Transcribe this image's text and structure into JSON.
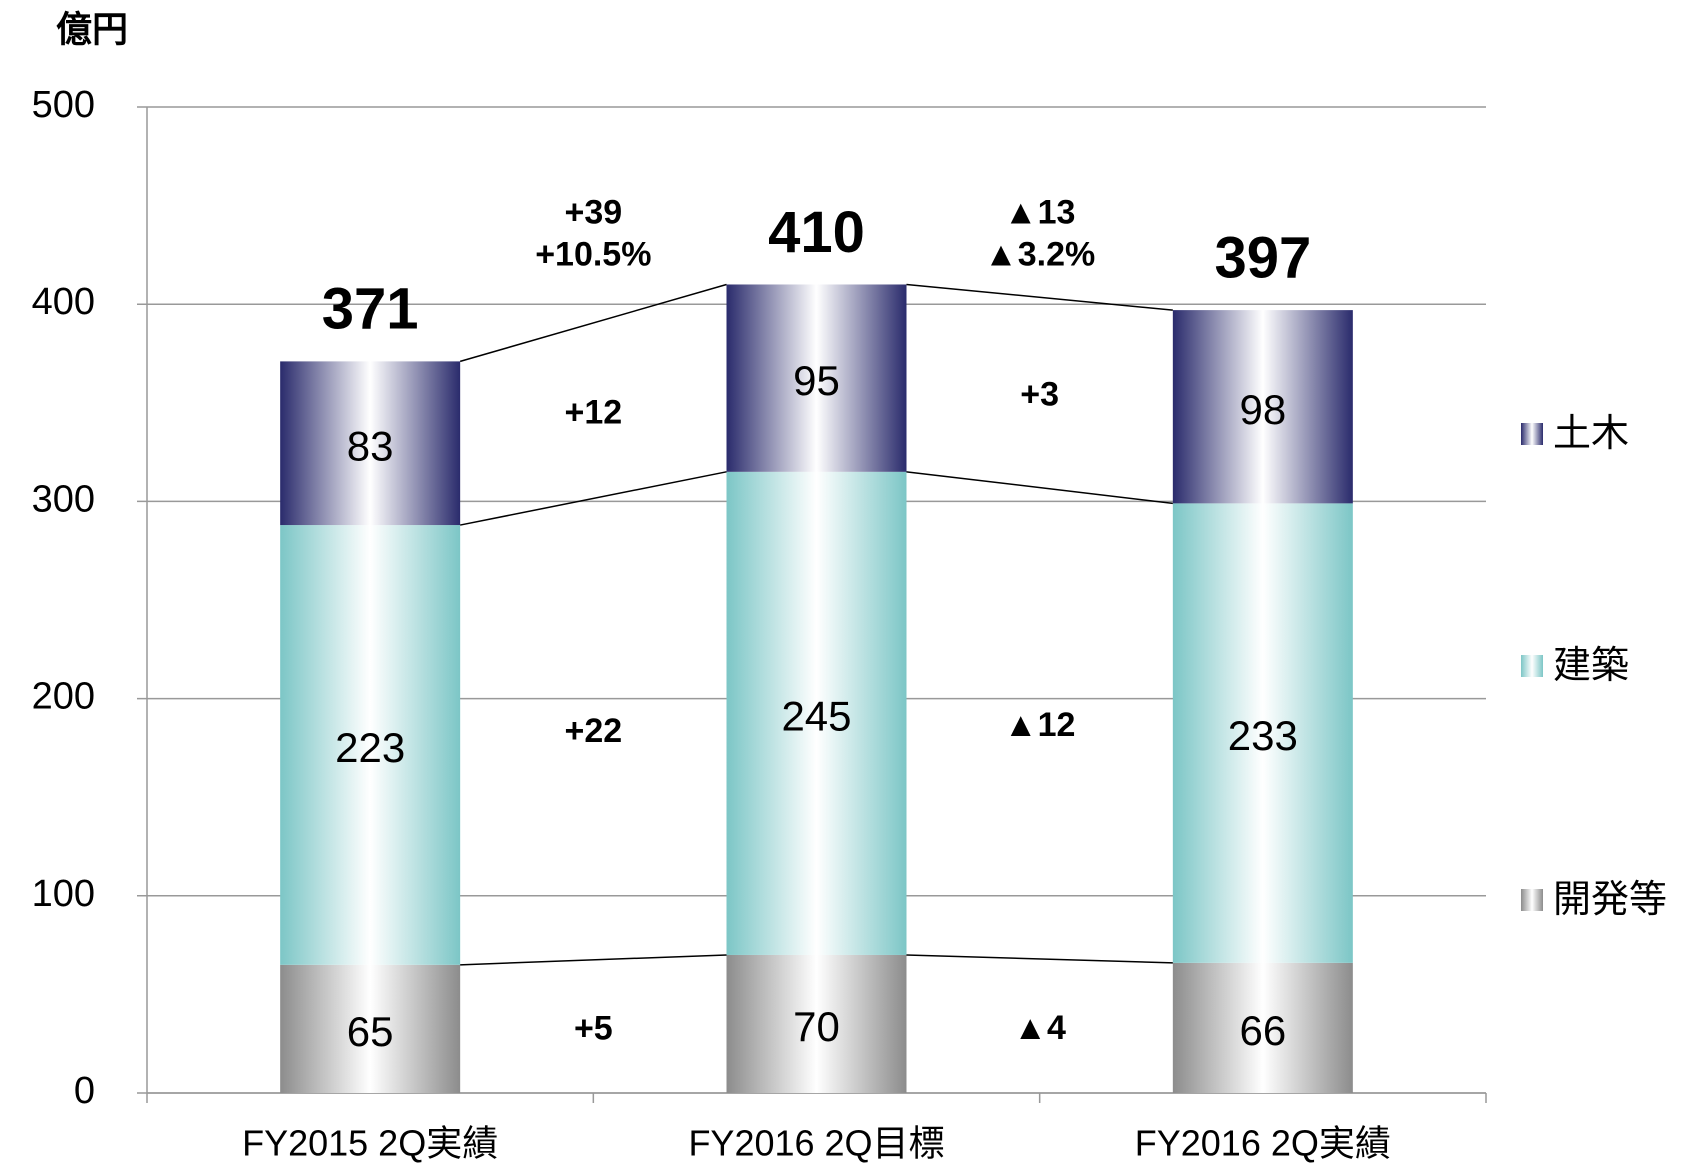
{
  "chart_data": {
    "type": "stacked_bar",
    "y_axis_label": "億円",
    "categories": [
      "FY2015 2Q実績",
      "FY2016 2Q目標",
      "FY2016 2Q実績"
    ],
    "series": [
      {
        "name": "開発等",
        "color": "#8c8c8c",
        "values": [
          65,
          70,
          66
        ]
      },
      {
        "name": "建築",
        "color": "#7cc6c6",
        "values": [
          223,
          245,
          233
        ]
      },
      {
        "name": "土木",
        "color": "#2a2b6c",
        "values": [
          83,
          95,
          98
        ]
      }
    ],
    "totals": [
      371,
      410,
      397
    ],
    "changes": [
      {
        "total": "+39",
        "total_pct": "+10.5%",
        "segments": [
          "+5",
          "+22",
          "+12"
        ]
      },
      {
        "total": "▲13",
        "total_pct": "▲3.2%",
        "segments": [
          "▲4",
          "▲12",
          "+3"
        ]
      }
    ],
    "ylim": [
      0,
      500
    ],
    "yticks": [
      0,
      100,
      200,
      300,
      400,
      500
    ],
    "grid": true
  }
}
